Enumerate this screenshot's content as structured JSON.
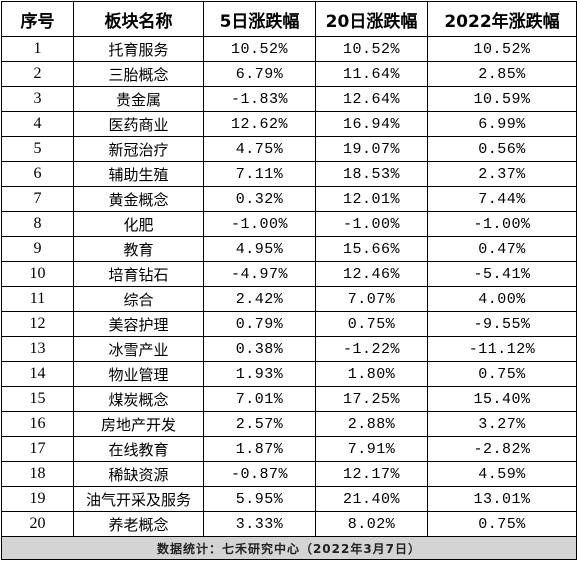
{
  "header": {
    "index": "序号",
    "sector": "板块名称",
    "change_5d": "5日涨跌幅",
    "change_20d": "20日涨跌幅",
    "change_2022": "2022年涨跌幅"
  },
  "rows": [
    {
      "index": "1",
      "sector": "托育服务",
      "d5": "10.52%",
      "d20": "10.52%",
      "y2022": "10.52%"
    },
    {
      "index": "2",
      "sector": "三胎概念",
      "d5": "6.79%",
      "d20": "11.64%",
      "y2022": "2.85%"
    },
    {
      "index": "3",
      "sector": "贵金属",
      "d5": "-1.83%",
      "d20": "12.64%",
      "y2022": "10.59%"
    },
    {
      "index": "4",
      "sector": "医药商业",
      "d5": "12.62%",
      "d20": "16.94%",
      "y2022": "6.99%"
    },
    {
      "index": "5",
      "sector": "新冠治疗",
      "d5": "4.75%",
      "d20": "19.07%",
      "y2022": "0.56%"
    },
    {
      "index": "6",
      "sector": "辅助生殖",
      "d5": "7.11%",
      "d20": "18.53%",
      "y2022": "2.37%"
    },
    {
      "index": "7",
      "sector": "黄金概念",
      "d5": "0.32%",
      "d20": "12.01%",
      "y2022": "7.44%"
    },
    {
      "index": "8",
      "sector": "化肥",
      "d5": "-1.00%",
      "d20": "-1.00%",
      "y2022": "-1.00%"
    },
    {
      "index": "9",
      "sector": "教育",
      "d5": "4.95%",
      "d20": "15.66%",
      "y2022": "0.47%"
    },
    {
      "index": "10",
      "sector": "培育钻石",
      "d5": "-4.97%",
      "d20": "12.46%",
      "y2022": "-5.41%"
    },
    {
      "index": "11",
      "sector": "综合",
      "d5": "2.42%",
      "d20": "7.07%",
      "y2022": "4.00%"
    },
    {
      "index": "12",
      "sector": "美容护理",
      "d5": "0.79%",
      "d20": "0.75%",
      "y2022": "-9.55%"
    },
    {
      "index": "13",
      "sector": "冰雪产业",
      "d5": "0.38%",
      "d20": "-1.22%",
      "y2022": "-11.12%"
    },
    {
      "index": "14",
      "sector": "物业管理",
      "d5": "1.93%",
      "d20": "1.80%",
      "y2022": "0.75%"
    },
    {
      "index": "15",
      "sector": "煤炭概念",
      "d5": "7.01%",
      "d20": "17.25%",
      "y2022": "15.40%"
    },
    {
      "index": "16",
      "sector": "房地产开发",
      "d5": "2.57%",
      "d20": "2.88%",
      "y2022": "3.27%"
    },
    {
      "index": "17",
      "sector": "在线教育",
      "d5": "1.87%",
      "d20": "7.91%",
      "y2022": "-2.82%"
    },
    {
      "index": "18",
      "sector": "稀缺资源",
      "d5": "-0.87%",
      "d20": "12.17%",
      "y2022": "4.59%"
    },
    {
      "index": "19",
      "sector": "油气开采及服务",
      "d5": "5.95%",
      "d20": "21.40%",
      "y2022": "13.01%"
    },
    {
      "index": "20",
      "sector": "养老概念",
      "d5": "3.33%",
      "d20": "8.02%",
      "y2022": "0.75%"
    }
  ],
  "footer": "数据统计：七禾研究中心（2022年3月7日）"
}
